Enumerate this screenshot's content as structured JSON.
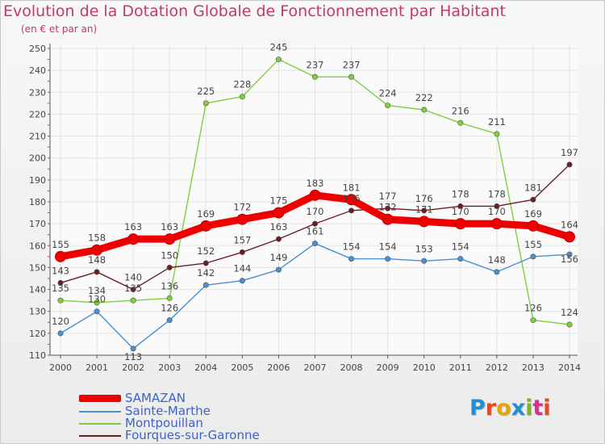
{
  "title": "Evolution de la Dotation Globale de Fonctionnement par Habitant",
  "subtitle": "(en € et par an)",
  "brand": "Proxiti",
  "colors": {
    "title": "#c03a6a",
    "legend_text": "#3d63c9",
    "grid": "#e3e3e3",
    "axis": "#555555",
    "brand": [
      "#1f8fd8",
      "#e34a1f",
      "#e6a400",
      "#1f8fd8",
      "#7ab623",
      "#d62f8e",
      "#e34a1f"
    ]
  },
  "chart_data": {
    "type": "line",
    "title": "Evolution de la Dotation Globale de Fonctionnement par Habitant",
    "subtitle": "(en € et par an)",
    "categories": [
      "2000",
      "2001",
      "2002",
      "2003",
      "2004",
      "2005",
      "2006",
      "2007",
      "2008",
      "2009",
      "2010",
      "2011",
      "2012",
      "2013",
      "2014"
    ],
    "ylim": [
      110,
      250
    ],
    "yticks": [
      110,
      120,
      130,
      140,
      150,
      160,
      170,
      180,
      190,
      200,
      210,
      220,
      230,
      240,
      250
    ],
    "grid": true,
    "legend_position": "bottom-left",
    "series": [
      {
        "name": "Montpouillan",
        "color": "#7ed13a",
        "values": [
          135,
          134,
          135,
          136,
          225,
          228,
          245,
          237,
          237,
          224,
          222,
          216,
          211,
          126,
          124
        ]
      },
      {
        "name": "Sainte-Marthe",
        "color": "#4a8fd0",
        "values": [
          120,
          130,
          113,
          126,
          142,
          144,
          149,
          161,
          154,
          154,
          153,
          154,
          148,
          155,
          156
        ]
      },
      {
        "name": "Fourques-sur-Garonne",
        "color": "#6b1d22",
        "values": [
          143,
          148,
          140,
          150,
          152,
          157,
          163,
          170,
          176,
          177,
          176,
          178,
          178,
          181,
          197
        ]
      },
      {
        "name": "SAMAZAN",
        "color": "#ef0000",
        "values": [
          155,
          158,
          163,
          163,
          169,
          172,
          175,
          183,
          181,
          172,
          171,
          170,
          170,
          169,
          164
        ]
      }
    ]
  },
  "legend_order": [
    "SAMAZAN",
    "Sainte-Marthe",
    "Montpouillan",
    "Fourques-sur-Garonne"
  ]
}
